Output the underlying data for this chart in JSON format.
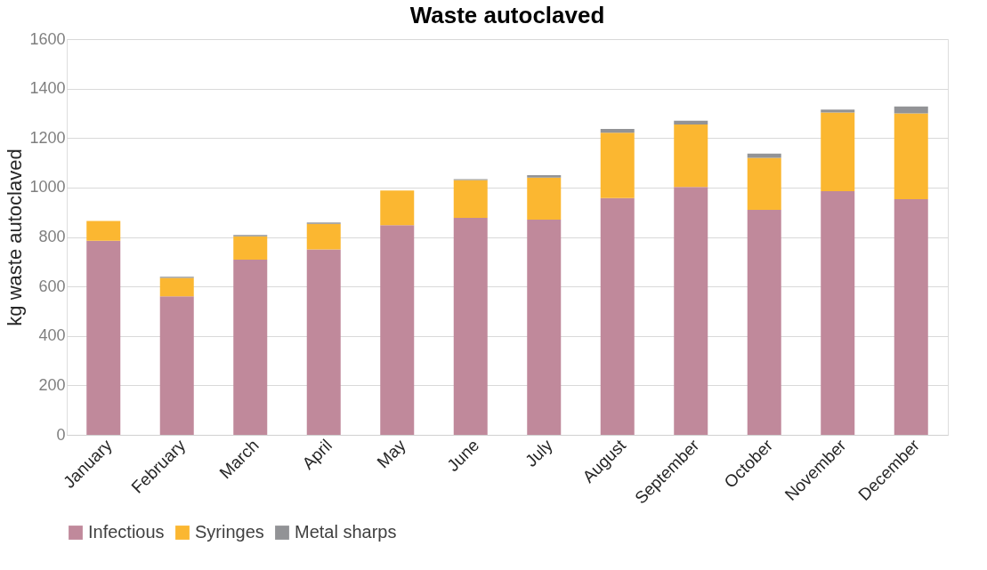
{
  "chart_data": {
    "type": "bar",
    "title": "Waste autoclaved",
    "ylabel": "kg waste autoclaved",
    "categories": [
      "January",
      "February",
      "March",
      "April",
      "May",
      "June",
      "July",
      "August",
      "September",
      "October",
      "November",
      "December"
    ],
    "stacked": true,
    "series": [
      {
        "name": "Infectious",
        "color": "#c0899b",
        "values": [
          785,
          560,
          708,
          750,
          848,
          877,
          870,
          957,
          1002,
          910,
          985,
          953
        ]
      },
      {
        "name": "Syringes",
        "color": "#fbb731",
        "values": [
          80,
          75,
          95,
          103,
          140,
          153,
          170,
          265,
          253,
          210,
          318,
          347
        ]
      },
      {
        "name": "Metal sharps",
        "color": "#929396",
        "values": [
          0,
          4,
          5,
          5,
          null,
          4,
          10,
          15,
          15,
          17,
          12,
          28
        ]
      }
    ],
    "ylim": [
      0,
      1600
    ],
    "yticks": [
      0,
      200,
      400,
      600,
      800,
      1000,
      1200,
      1400,
      1600
    ],
    "grid": "y",
    "legend": "bottom"
  }
}
